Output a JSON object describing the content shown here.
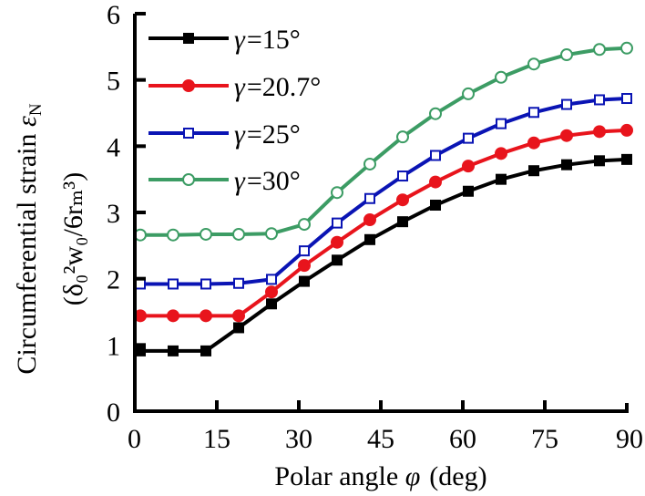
{
  "chart_data": {
    "type": "line",
    "title": "",
    "xlabel": "Polar angle φ (deg)",
    "xlabel_parts": {
      "text": "Polar angle ",
      "symbol": "φ",
      "unit": "(deg)"
    },
    "ylabel_line1": {
      "text": "Circumferential strain ",
      "symbol": "ε",
      "subscript": "N"
    },
    "ylabel_line2": "(δ₀²w₀/6rₘ³)",
    "xlim": [
      0,
      90
    ],
    "ylim": [
      0,
      6
    ],
    "xticks": [
      "0",
      "15",
      "30",
      "45",
      "60",
      "75",
      "90"
    ],
    "xtick_values": [
      0,
      15,
      30,
      45,
      60,
      75,
      90
    ],
    "yticks": [
      "0",
      "1",
      "2",
      "3",
      "4",
      "5",
      "6"
    ],
    "ytick_values": [
      0,
      1,
      2,
      3,
      4,
      5,
      6
    ],
    "grid": false,
    "legend_position": "top-left",
    "x": [
      1,
      7,
      13,
      19,
      25,
      31,
      37,
      43,
      49,
      55,
      61,
      67,
      73,
      79,
      85,
      90
    ],
    "series": [
      {
        "name": "γ=15°",
        "label": "=15°",
        "color": "#000000",
        "marker": "filled-square",
        "values": [
          0.91,
          0.91,
          0.91,
          1.26,
          1.62,
          1.96,
          2.28,
          2.59,
          2.86,
          3.11,
          3.32,
          3.5,
          3.63,
          3.72,
          3.78,
          3.8
        ]
      },
      {
        "name": "γ=20.7°",
        "label": "=20.7°",
        "color": "#e8141c",
        "marker": "filled-circle",
        "values": [
          1.44,
          1.44,
          1.44,
          1.44,
          1.8,
          2.2,
          2.55,
          2.89,
          3.19,
          3.46,
          3.7,
          3.89,
          4.05,
          4.16,
          4.22,
          4.24
        ]
      },
      {
        "name": "γ=25°",
        "label": "=25°",
        "color": "#0a14b4",
        "marker": "open-square",
        "values": [
          1.92,
          1.92,
          1.92,
          1.93,
          1.99,
          2.42,
          2.84,
          3.21,
          3.55,
          3.86,
          4.12,
          4.34,
          4.51,
          4.63,
          4.7,
          4.72
        ]
      },
      {
        "name": "γ=30°",
        "label": "=30°",
        "color": "#3c9c64",
        "marker": "open-circle",
        "values": [
          2.66,
          2.66,
          2.67,
          2.67,
          2.68,
          2.82,
          3.3,
          3.73,
          4.14,
          4.49,
          4.79,
          5.04,
          5.24,
          5.38,
          5.46,
          5.48
        ]
      }
    ],
    "legend_symbol": "γ"
  }
}
